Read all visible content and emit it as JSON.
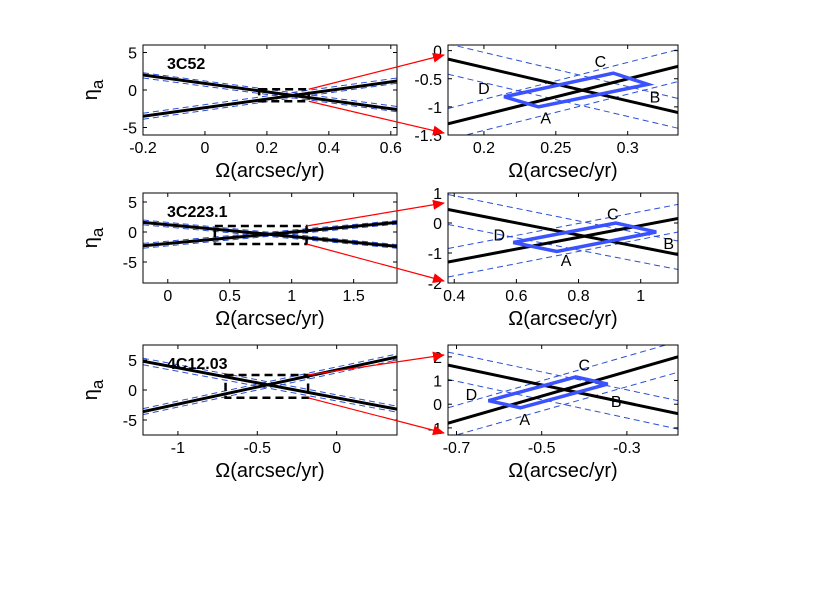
{
  "colors": {
    "solid": "#000000",
    "dashed": "#2a4fd6",
    "box": "#3b52ff",
    "arrow": "#ff0000"
  },
  "ylabel": "η",
  "ylabel_sub": "a",
  "chart_data": [
    {
      "type": "line",
      "panel": "overview",
      "title": "3C52",
      "xlabel": "Ω(arcsec/yr)",
      "ylabel": "η_a",
      "xlim": [
        -0.2,
        0.62
      ],
      "ylim": [
        -6,
        6
      ],
      "xticks": [
        -0.2,
        0,
        0.2,
        0.4,
        0.6
      ],
      "xticklabels": [
        "-0.2",
        "0",
        "0.2",
        "0.4",
        "0.6"
      ],
      "yticks": [
        -5,
        0,
        5
      ],
      "yticklabels": [
        "-5",
        "0",
        "5"
      ],
      "solid_lines": [
        {
          "x": [
            -0.2,
            0.62
          ],
          "y": [
            2.0,
            -2.6
          ]
        },
        {
          "x": [
            -0.2,
            0.62
          ],
          "y": [
            -3.5,
            1.2
          ]
        }
      ],
      "dashed_lines": [
        {
          "x": [
            -0.2,
            0.62
          ],
          "y": [
            1.6,
            -2.9
          ]
        },
        {
          "x": [
            -0.2,
            0.62
          ],
          "y": [
            2.3,
            -2.2
          ]
        },
        {
          "x": [
            -0.2,
            0.62
          ],
          "y": [
            -3.9,
            0.9
          ]
        },
        {
          "x": [
            -0.2,
            0.62
          ],
          "y": [
            -3.1,
            1.6
          ]
        }
      ],
      "zoom_box": {
        "x": [
          0.175,
          0.335
        ],
        "y": [
          -1.5,
          0.1
        ]
      }
    },
    {
      "type": "line",
      "panel": "zoom",
      "title": "",
      "xlabel": "Ω(arcsec/yr)",
      "ylabel": "",
      "xlim": [
        0.175,
        0.335
      ],
      "ylim": [
        -1.5,
        0.1
      ],
      "xticks": [
        0.2,
        0.25,
        0.3
      ],
      "xticklabels": [
        "0.2",
        "0.25",
        "0.3"
      ],
      "yticks": [
        0,
        -0.5,
        -1,
        -1.5
      ],
      "yticklabels": [
        "0",
        "-0.5",
        "-1",
        "-1.5"
      ],
      "solid_lines": [
        {
          "x": [
            0.175,
            0.335
          ],
          "y": [
            -0.15,
            -1.1
          ]
        },
        {
          "x": [
            0.175,
            0.335
          ],
          "y": [
            -1.3,
            -0.28
          ]
        }
      ],
      "dashed_lines": [
        {
          "x": [
            0.175,
            0.335
          ],
          "y": [
            0.12,
            -0.85
          ]
        },
        {
          "x": [
            0.175,
            0.335
          ],
          "y": [
            -0.42,
            -1.38
          ]
        },
        {
          "x": [
            0.175,
            0.335
          ],
          "y": [
            -1.03,
            0.02
          ]
        },
        {
          "x": [
            0.175,
            0.335
          ],
          "y": [
            -1.58,
            -0.55
          ]
        }
      ],
      "box": {
        "x": [
          0.214,
          0.238,
          0.314,
          0.29
        ],
        "y": [
          -0.82,
          -1.0,
          -0.6,
          -0.4
        ]
      },
      "corner_labels": [
        "D",
        "A",
        "B",
        "C"
      ],
      "corner_label_pos": [
        {
          "x": 0.2,
          "y": -0.7
        },
        {
          "x": 0.243,
          "y": -1.22
        },
        {
          "x": 0.319,
          "y": -0.85
        },
        {
          "x": 0.281,
          "y": -0.22
        }
      ]
    },
    {
      "type": "line",
      "panel": "overview",
      "title": "3C223.1",
      "xlabel": "Ω(arcsec/yr)",
      "ylabel": "η_a",
      "xlim": [
        -0.2,
        1.85
      ],
      "ylim": [
        -8.5,
        6.5
      ],
      "xticks": [
        0,
        0.5,
        1,
        1.5
      ],
      "xticklabels": [
        "0",
        "0.5",
        "1",
        "1.5"
      ],
      "yticks": [
        -5,
        0,
        5
      ],
      "yticklabels": [
        "-5",
        "0",
        "5"
      ],
      "solid_lines": [
        {
          "x": [
            -0.2,
            1.85
          ],
          "y": [
            1.6,
            -2.4
          ]
        },
        {
          "x": [
            -0.2,
            1.85
          ],
          "y": [
            -2.3,
            1.6
          ]
        }
      ],
      "dashed_lines": [
        {
          "x": [
            -0.2,
            1.85
          ],
          "y": [
            1.2,
            -2.7
          ]
        },
        {
          "x": [
            -0.2,
            1.85
          ],
          "y": [
            2.0,
            -2.1
          ]
        },
        {
          "x": [
            -0.2,
            1.85
          ],
          "y": [
            -2.7,
            1.3
          ]
        },
        {
          "x": [
            -0.2,
            1.85
          ],
          "y": [
            -1.9,
            1.9
          ]
        }
      ],
      "zoom_box": {
        "x": [
          0.38,
          1.12
        ],
        "y": [
          -2.0,
          1.0
        ]
      }
    },
    {
      "type": "line",
      "panel": "zoom",
      "title": "",
      "xlabel": "Ω(arcsec/yr)",
      "ylabel": "",
      "xlim": [
        0.38,
        1.12
      ],
      "ylim": [
        -2.0,
        1.0
      ],
      "xticks": [
        0.4,
        0.6,
        0.8,
        1
      ],
      "xticklabels": [
        "0.4",
        "0.6",
        "0.8",
        "1"
      ],
      "yticks": [
        1,
        0,
        -1,
        -2
      ],
      "yticklabels": [
        "1",
        "0",
        "-1",
        "-2"
      ],
      "solid_lines": [
        {
          "x": [
            0.38,
            1.12
          ],
          "y": [
            0.45,
            -1.05
          ]
        },
        {
          "x": [
            0.38,
            1.12
          ],
          "y": [
            -1.3,
            0.15
          ]
        }
      ],
      "dashed_lines": [
        {
          "x": [
            0.38,
            1.12
          ],
          "y": [
            0.95,
            -0.6
          ]
        },
        {
          "x": [
            0.38,
            1.12
          ],
          "y": [
            -0.05,
            -1.55
          ]
        },
        {
          "x": [
            0.38,
            1.12
          ],
          "y": [
            -1.8,
            -0.3
          ]
        },
        {
          "x": [
            0.38,
            1.12
          ],
          "y": [
            -0.85,
            0.62
          ]
        }
      ],
      "box": {
        "x": [
          0.59,
          0.73,
          1.05,
          0.92
        ],
        "y": [
          -0.65,
          -0.95,
          -0.3,
          0.0
        ]
      },
      "corner_labels": [
        "D",
        "A",
        "B",
        "C"
      ],
      "corner_label_pos": [
        {
          "x": 0.545,
          "y": -0.45
        },
        {
          "x": 0.76,
          "y": -1.3
        },
        {
          "x": 1.09,
          "y": -0.72
        },
        {
          "x": 0.91,
          "y": 0.25
        }
      ]
    },
    {
      "type": "line",
      "panel": "overview",
      "title": "4C12.03",
      "xlabel": "Ω(arcsec/yr)",
      "ylabel": "η_a",
      "xlim": [
        -1.22,
        0.38
      ],
      "ylim": [
        -7.5,
        7.5
      ],
      "xticks": [
        -1,
        -0.5,
        0
      ],
      "xticklabels": [
        "-1",
        "-0.5",
        "0"
      ],
      "yticks": [
        -5,
        0,
        5
      ],
      "yticklabels": [
        "-5",
        "0",
        "5"
      ],
      "solid_lines": [
        {
          "x": [
            -1.22,
            0.38
          ],
          "y": [
            4.8,
            -3.2
          ]
        },
        {
          "x": [
            -1.22,
            0.38
          ],
          "y": [
            -3.6,
            5.5
          ]
        }
      ],
      "dashed_lines": [
        {
          "x": [
            -1.22,
            0.38
          ],
          "y": [
            4.2,
            -3.7
          ]
        },
        {
          "x": [
            -1.22,
            0.38
          ],
          "y": [
            5.3,
            -2.7
          ]
        },
        {
          "x": [
            -1.22,
            0.38
          ],
          "y": [
            -4.1,
            5.0
          ]
        },
        {
          "x": [
            -1.22,
            0.38
          ],
          "y": [
            -3.1,
            6.0
          ]
        }
      ],
      "zoom_box": {
        "x": [
          -0.7,
          -0.18
        ],
        "y": [
          -1.3,
          2.5
        ]
      }
    },
    {
      "type": "line",
      "panel": "zoom",
      "title": "",
      "xlabel": "Ω(arcsec/yr)",
      "ylabel": "",
      "xlim": [
        -0.72,
        -0.18
      ],
      "ylim": [
        -1.3,
        2.5
      ],
      "xticks": [
        -0.7,
        -0.5,
        -0.3
      ],
      "xticklabels": [
        "-0.7",
        "-0.5",
        "-0.3"
      ],
      "yticks": [
        2,
        1,
        0,
        -1
      ],
      "yticklabels": [
        "2",
        "1",
        "0",
        "-1"
      ],
      "solid_lines": [
        {
          "x": [
            -0.72,
            -0.18
          ],
          "y": [
            1.65,
            -0.4
          ]
        },
        {
          "x": [
            -0.72,
            -0.18
          ],
          "y": [
            -0.8,
            2.0
          ]
        }
      ],
      "dashed_lines": [
        {
          "x": [
            -0.72,
            -0.18
          ],
          "y": [
            2.2,
            0.15
          ]
        },
        {
          "x": [
            -0.72,
            -0.18
          ],
          "y": [
            1.05,
            -1.05
          ]
        },
        {
          "x": [
            -0.72,
            -0.18
          ],
          "y": [
            -1.4,
            1.35
          ]
        },
        {
          "x": [
            -0.72,
            -0.18
          ],
          "y": [
            -0.15,
            2.65
          ]
        }
      ],
      "box": {
        "x": [
          -0.625,
          -0.55,
          -0.345,
          -0.42
        ],
        "y": [
          0.15,
          -0.15,
          0.85,
          1.15
        ]
      },
      "corner_labels": [
        "D",
        "A",
        "B",
        "C"
      ],
      "corner_label_pos": [
        {
          "x": -0.665,
          "y": 0.35
        },
        {
          "x": -0.54,
          "y": -0.7
        },
        {
          "x": -0.325,
          "y": 0.05
        },
        {
          "x": -0.4,
          "y": 1.6
        }
      ]
    }
  ]
}
